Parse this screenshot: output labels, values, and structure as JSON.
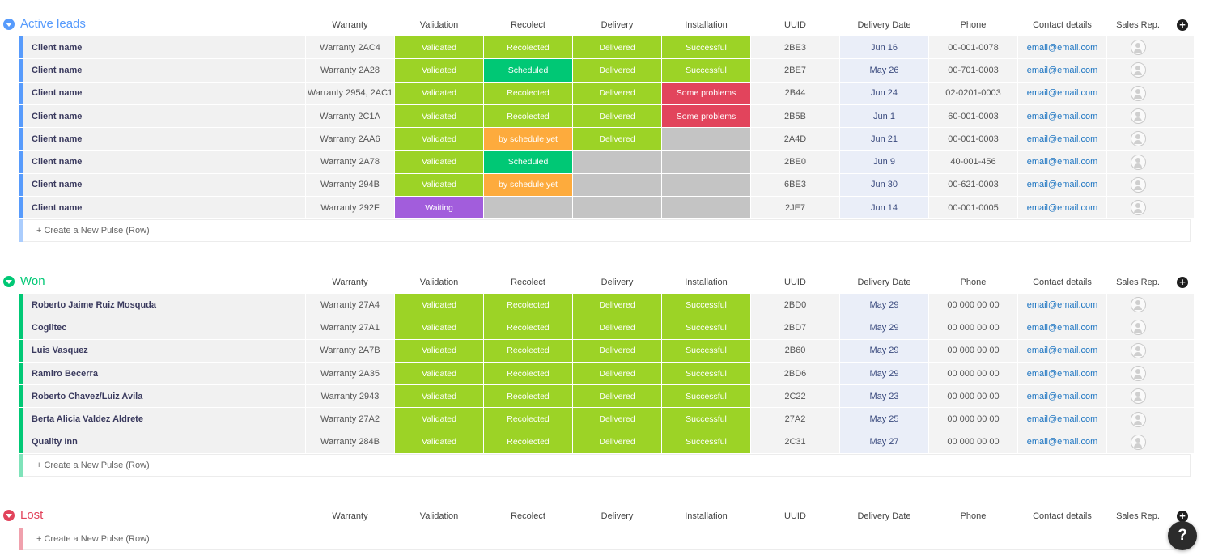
{
  "colors": {
    "validated": "#9cd326",
    "recolected": "#9cd326",
    "scheduled": "#00c875",
    "by_schedule": "#fdab3d",
    "delivered": "#9cd326",
    "successful": "#9cd326",
    "problems": "#e2445c",
    "waiting": "#a25ddc",
    "empty": "#c4c4c4",
    "active_group": "#579bfc",
    "won_group": "#00c875",
    "lost_group": "#e2445c"
  },
  "columns": [
    "Warranty",
    "Validation",
    "Recolect",
    "Delivery",
    "Installation",
    "UUID",
    "Delivery Date",
    "Phone",
    "Contact details",
    "Sales Rep."
  ],
  "new_row_label": "+ Create a New Pulse (Row)",
  "help_label": "?",
  "groups": [
    {
      "title": "Active leads",
      "color_key": "active_group",
      "rows": [
        {
          "name": "Client name",
          "warranty": "Warranty 2AC4",
          "validation": "Validated",
          "recolect": "Recolected",
          "delivery": "Delivered",
          "installation": "Successful",
          "uuid": "2BE3",
          "date": "Jun 16",
          "phone": "00-001-0078",
          "email": "email@email.com"
        },
        {
          "name": "Client name",
          "warranty": "Warranty 2A28",
          "validation": "Validated",
          "recolect": "Scheduled",
          "delivery": "Delivered",
          "installation": "Successful",
          "uuid": "2BE7",
          "date": "May 26",
          "phone": "00-701-0003",
          "email": "email@email.com"
        },
        {
          "name": "Client name",
          "warranty": "Warranty 2954, 2AC1",
          "validation": "Validated",
          "recolect": "Recolected",
          "delivery": "Delivered",
          "installation": "Some problems",
          "uuid": "2B44",
          "date": "Jun 24",
          "phone": "02-0201-0003",
          "email": "email@email.com"
        },
        {
          "name": "Client name",
          "warranty": "Warranty 2C1A",
          "validation": "Validated",
          "recolect": "Recolected",
          "delivery": "Delivered",
          "installation": "Some problems",
          "uuid": "2B5B",
          "date": "Jun 1",
          "phone": "60-001-0003",
          "email": "email@email.com"
        },
        {
          "name": "Client name",
          "warranty": "Warranty 2AA6",
          "validation": "Validated",
          "recolect": "by schedule yet",
          "delivery": "Delivered",
          "installation": "",
          "uuid": "2A4D",
          "date": "Jun 21",
          "phone": "00-001-0003",
          "email": "email@email.com"
        },
        {
          "name": "Client name",
          "warranty": "Warranty 2A78",
          "validation": "Validated",
          "recolect": "Scheduled",
          "delivery": "",
          "installation": "",
          "uuid": "2BE0",
          "date": "Jun 9",
          "phone": "40-001-456",
          "email": "email@email.com"
        },
        {
          "name": "Client name",
          "warranty": "Warranty 294B",
          "validation": "Validated",
          "recolect": "by schedule yet",
          "delivery": "",
          "installation": "",
          "uuid": "6BE3",
          "date": "Jun 30",
          "phone": "00-621-0003",
          "email": "email@email.com"
        },
        {
          "name": "Client name",
          "warranty": "Warranty 292F",
          "validation": "Waiting",
          "recolect": "",
          "delivery": "",
          "installation": "",
          "uuid": "2JE7",
          "date": "Jun 14",
          "phone": "00-001-0005",
          "email": "email@email.com"
        }
      ]
    },
    {
      "title": "Won",
      "color_key": "won_group",
      "rows": [
        {
          "name": "Roberto Jaime Ruiz Mosquda",
          "warranty": "Warranty 27A4",
          "validation": "Validated",
          "recolect": "Recolected",
          "delivery": "Delivered",
          "installation": "Successful",
          "uuid": "2BD0",
          "date": "May 29",
          "phone": "00 000 00 00",
          "email": "email@email.com"
        },
        {
          "name": "Coglitec",
          "warranty": "Warranty 27A1",
          "validation": "Validated",
          "recolect": "Recolected",
          "delivery": "Delivered",
          "installation": "Successful",
          "uuid": "2BD7",
          "date": "May 29",
          "phone": "00 000 00 00",
          "email": "email@email.com"
        },
        {
          "name": "Luis Vasquez",
          "warranty": "Warranty 2A7B",
          "validation": "Validated",
          "recolect": "Recolected",
          "delivery": "Delivered",
          "installation": "Successful",
          "uuid": "2B60",
          "date": "May 29",
          "phone": "00 000 00 00",
          "email": "email@email.com"
        },
        {
          "name": "Ramiro Becerra",
          "warranty": "Warranty 2A35",
          "validation": "Validated",
          "recolect": "Recolected",
          "delivery": "Delivered",
          "installation": "Successful",
          "uuid": "2BD6",
          "date": "May 29",
          "phone": "00 000 00 00",
          "email": "email@email.com"
        },
        {
          "name": "Roberto Chavez/Luiz Avila",
          "warranty": "Warranty 2943",
          "validation": "Validated",
          "recolect": "Recolected",
          "delivery": "Delivered",
          "installation": "Successful",
          "uuid": "2C22",
          "date": "May 23",
          "phone": "00 000 00 00",
          "email": "email@email.com"
        },
        {
          "name": "Berta Alicia Valdez Aldrete",
          "warranty": "Warranty 27A2",
          "validation": "Validated",
          "recolect": "Recolected",
          "delivery": "Delivered",
          "installation": "Successful",
          "uuid": "27A2",
          "date": "May 25",
          "phone": "00 000 00 00",
          "email": "email@email.com"
        },
        {
          "name": "Quality Inn",
          "warranty": "Warranty 284B",
          "validation": "Validated",
          "recolect": "Recolected",
          "delivery": "Delivered",
          "installation": "Successful",
          "uuid": "2C31",
          "date": "May 27",
          "phone": "00 000 00 00",
          "email": "email@email.com"
        }
      ]
    },
    {
      "title": "Lost",
      "color_key": "lost_group",
      "rows": []
    }
  ]
}
